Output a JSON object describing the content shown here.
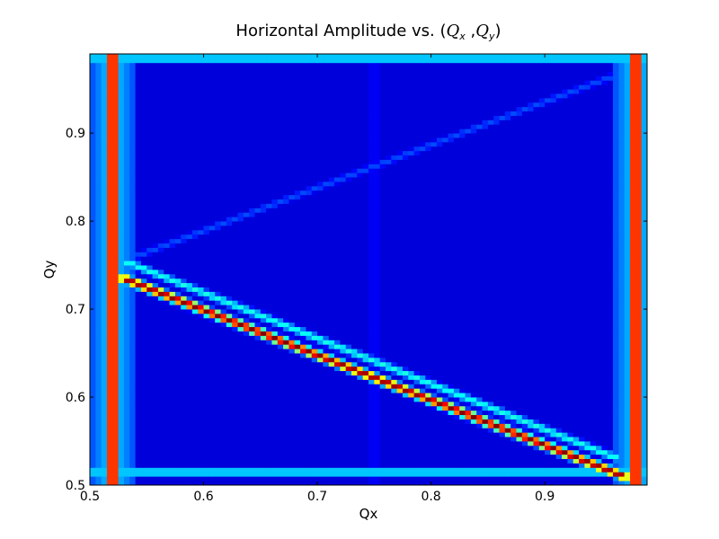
{
  "chart_data": {
    "type": "heatmap",
    "title": "Horizontal Amplitude vs. (Q_x ,Q_y)",
    "title_parts": {
      "prefix": "Horizontal Amplitude vs. (",
      "qx_base": "Q",
      "qx_sub": "x",
      "separator": " ,",
      "qy_base": "Q",
      "qy_sub": "y",
      "suffix": ")"
    },
    "xlabel": "Qx",
    "ylabel": "Qy",
    "xlim": [
      0.5,
      0.99
    ],
    "ylim": [
      0.5,
      0.99
    ],
    "grid_step": 0.005,
    "xticks": [
      0.5,
      0.6,
      0.7,
      0.8,
      0.9
    ],
    "yticks": [
      0.5,
      0.6,
      0.7,
      0.8,
      0.9
    ],
    "xtick_labels": [
      "0.5",
      "0.6",
      "0.7",
      "0.8",
      "0.9"
    ],
    "ytick_labels": [
      "0.5",
      "0.6",
      "0.7",
      "0.8",
      "0.9"
    ],
    "grid": false,
    "legend": "none",
    "colormap": "jet",
    "colormap_stops": [
      "#00007f",
      "#0000ff",
      "#007fff",
      "#00ffff",
      "#7fff7f",
      "#ffff00",
      "#ff7f00",
      "#ff0000",
      "#7f0000"
    ],
    "background_level": 0.09,
    "features": [
      {
        "kind": "vertical_band",
        "x": 0.52,
        "peak": 1.0
      },
      {
        "kind": "vertical_band",
        "x": 0.98,
        "peak": 1.0
      },
      {
        "kind": "horizontal_band",
        "y": 0.985,
        "peak": 0.45
      },
      {
        "kind": "horizontal_band",
        "y": 0.515,
        "peak": 0.45
      },
      {
        "kind": "diagonal_line",
        "from": [
          0.53,
          0.735
        ],
        "to": [
          0.97,
          0.51
        ],
        "peak": 1.0
      },
      {
        "kind": "diagonal_line",
        "from": [
          0.53,
          0.755
        ],
        "to": [
          0.965,
          0.53
        ],
        "peak": 0.4
      },
      {
        "kind": "diagonal_line",
        "from": [
          0.53,
          0.755
        ],
        "to": [
          0.96,
          0.965
        ],
        "peak": 0.2
      },
      {
        "kind": "vertical_line",
        "x": 0.665,
        "peak": 0.17
      },
      {
        "kind": "vertical_line",
        "x": 0.75,
        "peak": 0.25
      }
    ]
  }
}
